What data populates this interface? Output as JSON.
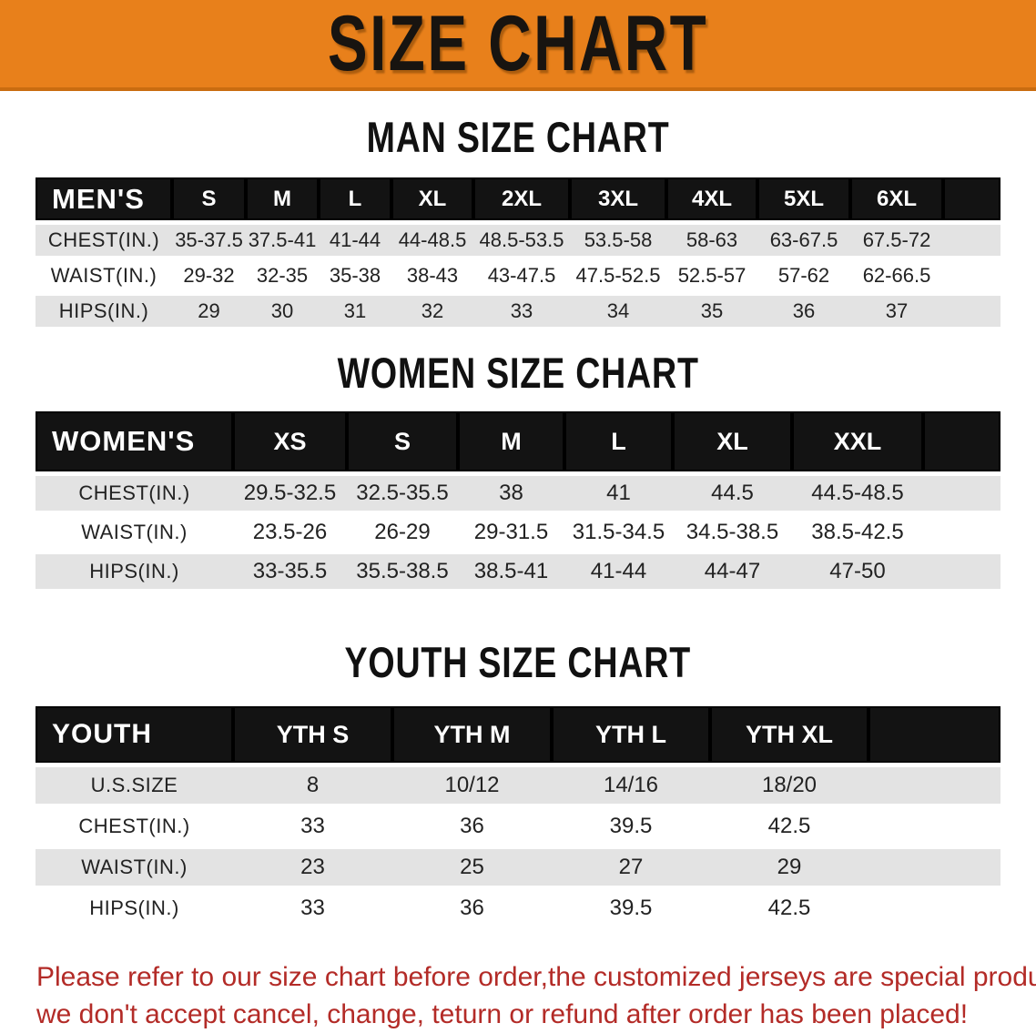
{
  "banner": {
    "title": "SIZE CHART"
  },
  "sections": {
    "man_heading": "MAN SIZE CHART",
    "women_heading": "WOMEN SIZE CHART",
    "youth_heading": "YOUTH SIZE CHART"
  },
  "tables": {
    "men": {
      "label": "MEN'S",
      "sizes": [
        "S",
        "M",
        "L",
        "XL",
        "2XL",
        "3XL",
        "4XL",
        "5XL",
        "6XL"
      ],
      "rows": [
        {
          "label": "CHEST(IN.)",
          "values": [
            "35-37.5",
            "37.5-41",
            "41-44",
            "44-48.5",
            "48.5-53.5",
            "53.5-58",
            "58-63",
            "63-67.5",
            "67.5-72"
          ]
        },
        {
          "label": "WAIST(IN.)",
          "values": [
            "29-32",
            "32-35",
            "35-38",
            "38-43",
            "43-47.5",
            "47.5-52.5",
            "52.5-57",
            "57-62",
            "62-66.5"
          ]
        },
        {
          "label": "HIPS(IN.)",
          "values": [
            "29",
            "30",
            "31",
            "32",
            "33",
            "34",
            "35",
            "36",
            "37"
          ]
        }
      ]
    },
    "women": {
      "label": "WOMEN'S",
      "sizes": [
        "XS",
        "S",
        "M",
        "L",
        "XL",
        "XXL"
      ],
      "rows": [
        {
          "label": "CHEST(IN.)",
          "values": [
            "29.5-32.5",
            "32.5-35.5",
            "38",
            "41",
            "44.5",
            "44.5-48.5"
          ]
        },
        {
          "label": "WAIST(IN.)",
          "values": [
            "23.5-26",
            "26-29",
            "29-31.5",
            "31.5-34.5",
            "34.5-38.5",
            "38.5-42.5"
          ]
        },
        {
          "label": "HIPS(IN.)",
          "values": [
            "33-35.5",
            "35.5-38.5",
            "38.5-41",
            "41-44",
            "44-47",
            "47-50"
          ]
        }
      ]
    },
    "youth": {
      "label": "YOUTH",
      "sizes": [
        "YTH S",
        "YTH M",
        "YTH L",
        "YTH XL"
      ],
      "rows": [
        {
          "label": "U.S.SIZE",
          "values": [
            "8",
            "10/12",
            "14/16",
            "18/20"
          ]
        },
        {
          "label": "CHEST(IN.)",
          "values": [
            "33",
            "36",
            "39.5",
            "42.5"
          ]
        },
        {
          "label": "WAIST(IN.)",
          "values": [
            "23",
            "25",
            "27",
            "29"
          ]
        },
        {
          "label": "HIPS(IN.)",
          "values": [
            "33",
            "36",
            "39.5",
            "42.5"
          ]
        }
      ]
    }
  },
  "disclaimer": {
    "lines": [
      "Please refer to our size chart before order,the customized jerseys are special products,",
      "we don't accept cancel, change, teturn or refund after order has been placed!"
    ]
  },
  "colors": {
    "banner_orange": "#E8801B",
    "banner_orange_edge": "#C96C10",
    "header_band_black": "#131313",
    "row_gray": "#E3E3E3",
    "row_white": "#FFFFFF",
    "disclaimer_red": "#B32B27"
  }
}
